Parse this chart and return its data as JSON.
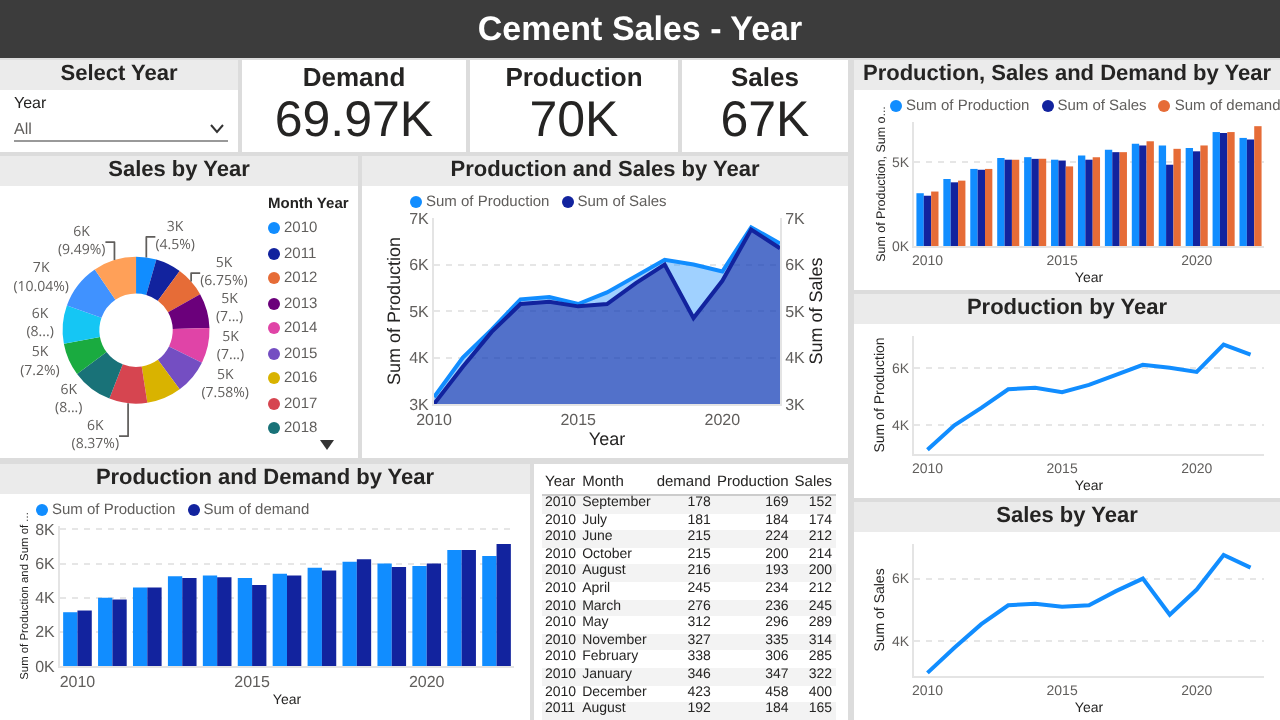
{
  "chart_data": [
    {
      "type": "other",
      "title": "Cement Sales - Year"
    },
    {
      "type": "other",
      "title": "Select Year",
      "annotations": [
        "Year",
        "All"
      ]
    },
    {
      "type": "other",
      "title": "Demand",
      "annotations": [
        "69.97K"
      ]
    },
    {
      "type": "other",
      "title": "Production",
      "annotations": [
        "70K"
      ]
    },
    {
      "type": "other",
      "title": "Sales",
      "annotations": [
        "67K"
      ]
    },
    {
      "type": "bar",
      "title": "Production, Sales and Demand by Year",
      "xlabel": "Year",
      "ylabel": "Sum of Production, Sum o...",
      "x": [
        2010,
        2011,
        2012,
        2013,
        2014,
        2015,
        2016,
        2017,
        2018,
        2019,
        2020,
        2021,
        2022
      ],
      "xlim": [
        2009.5,
        2022.5
      ],
      "xticks": [
        2010,
        2015,
        2020
      ],
      "ylim": [
        0,
        7400
      ],
      "yticks": [
        {
          "value": 0,
          "label": "0K"
        },
        {
          "value": 5000,
          "label": "5K"
        }
      ],
      "grid": "y",
      "legend": "top left",
      "series": [
        {
          "name": "Sum of Production",
          "color": "#118dff",
          "values": [
            3150,
            4000,
            4600,
            5250,
            5300,
            5150,
            5400,
            5750,
            6100,
            6000,
            5850,
            6800,
            6450
          ]
        },
        {
          "name": "Sum of Sales",
          "color": "#12239e",
          "values": [
            3000,
            3800,
            4550,
            5150,
            5200,
            5100,
            5150,
            5600,
            6000,
            4850,
            5650,
            6750,
            6350
          ]
        },
        {
          "name": "Sum of demand",
          "color": "#e66c37",
          "values": [
            3250,
            3900,
            4600,
            5150,
            5200,
            4750,
            5300,
            5600,
            6250,
            5800,
            6000,
            6800,
            7150
          ]
        }
      ]
    },
    {
      "type": "donut",
      "title": "Sales by Year",
      "legend_title": "Month Year",
      "legend": "right",
      "categories": [
        "2010",
        "2011",
        "2012",
        "2013",
        "2014",
        "2015",
        "2016",
        "2017",
        "2018",
        null,
        null,
        null,
        null
      ],
      "values": [
        3000,
        3800,
        4530,
        5150,
        5200,
        5090,
        5150,
        5620,
        6000,
        4835,
        5650,
        6740,
        6375
      ],
      "value_labels": [
        "3K (4.5%)",
        null,
        "5K (6.75%)",
        "5K (7...)",
        "5K (7...)",
        "5K (7.58%)",
        null,
        "6K (8.37%)",
        "6K (8...)",
        "5K (7.2%)",
        "6K (8...)",
        "7K (10.04%)",
        "6K (9.49%)"
      ],
      "colors": [
        "#118dff",
        "#12239e",
        "#e66c37",
        "#6b007b",
        "#e044a7",
        "#744ec2",
        "#d9b300",
        "#d64550",
        "#197278",
        "#1aab40",
        "#15c6f4",
        "#4092ff",
        "#ffa058"
      ]
    },
    {
      "type": "area",
      "title": "Production and Sales by Year",
      "xlabel": "Year",
      "ylabel": "Sum of Production",
      "y2label": "Sum of Sales",
      "x": [
        2010,
        2011,
        2012,
        2013,
        2014,
        2015,
        2016,
        2017,
        2018,
        2019,
        2020,
        2021,
        2022
      ],
      "xlim": [
        2010,
        2022
      ],
      "xticks": [
        2010,
        2015,
        2020
      ],
      "ylim": [
        3000,
        7000
      ],
      "yticks": [
        {
          "value": 3000,
          "label": "3K"
        },
        {
          "value": 4000,
          "label": "4K"
        },
        {
          "value": 5000,
          "label": "5K"
        },
        {
          "value": 6000,
          "label": "6K"
        },
        {
          "value": 7000,
          "label": "7K"
        }
      ],
      "y2lim": [
        3000,
        7000
      ],
      "y2ticks": [
        {
          "value": 3000,
          "label": "3K"
        },
        {
          "value": 4000,
          "label": "4K"
        },
        {
          "value": 5000,
          "label": "5K"
        },
        {
          "value": 6000,
          "label": "6K"
        },
        {
          "value": 7000,
          "label": "7K"
        }
      ],
      "grid": "y",
      "legend": "top left",
      "series": [
        {
          "name": "Sum of Production",
          "color": "#118dff",
          "values": [
            3150,
            4000,
            4600,
            5250,
            5300,
            5150,
            5400,
            5750,
            6100,
            6000,
            5850,
            6800,
            6450
          ]
        },
        {
          "name": "Sum of Sales",
          "color": "#12239e",
          "values": [
            3000,
            3800,
            4550,
            5150,
            5200,
            5100,
            5150,
            5600,
            6000,
            4850,
            5650,
            6750,
            6350
          ]
        }
      ]
    },
    {
      "type": "line",
      "title": "Production by Year",
      "xlabel": "Year",
      "ylabel": "Sum of Production",
      "x": [
        2010,
        2011,
        2012,
        2013,
        2014,
        2015,
        2016,
        2017,
        2018,
        2019,
        2020,
        2021,
        2022
      ],
      "xlim": [
        2009.5,
        2022.5
      ],
      "xticks": [
        2010,
        2015,
        2020
      ],
      "ylim": [
        3000,
        7100
      ],
      "yticks": [
        {
          "value": 4000,
          "label": "4K"
        },
        {
          "value": 6000,
          "label": "6K"
        }
      ],
      "grid": "y",
      "series": [
        {
          "color": "#118dff",
          "values": [
            3150,
            4000,
            4600,
            5250,
            5300,
            5150,
            5400,
            5750,
            6100,
            6000,
            5850,
            6800,
            6450
          ]
        }
      ]
    },
    {
      "type": "bar",
      "title": "Production and Demand by Year",
      "xlabel": "Year",
      "ylabel": "Sum of Production and Sum of ...",
      "x": [
        2010,
        2011,
        2012,
        2013,
        2014,
        2015,
        2016,
        2017,
        2018,
        2019,
        2020,
        2021,
        2022
      ],
      "xlim": [
        2009.5,
        2022.5
      ],
      "xticks": [
        2010,
        2015,
        2020
      ],
      "ylim": [
        0,
        8200
      ],
      "yticks": [
        {
          "value": 0,
          "label": "0K"
        },
        {
          "value": 2000,
          "label": "2K"
        },
        {
          "value": 4000,
          "label": "4K"
        },
        {
          "value": 6000,
          "label": "6K"
        },
        {
          "value": 8000,
          "label": "8K"
        }
      ],
      "grid": "y",
      "legend": "top left",
      "series": [
        {
          "name": "Sum of Production",
          "color": "#118dff",
          "values": [
            3150,
            4000,
            4600,
            5250,
            5300,
            5150,
            5400,
            5750,
            6100,
            6000,
            5850,
            6800,
            6450
          ]
        },
        {
          "name": "Sum of demand",
          "color": "#12239e",
          "values": [
            3250,
            3900,
            4600,
            5150,
            5200,
            4750,
            5300,
            5600,
            6250,
            5800,
            6000,
            6800,
            7150
          ]
        }
      ]
    },
    {
      "type": "other",
      "categories": [
        "Year",
        "Month",
        "demand",
        "Production",
        "Sales"
      ],
      "cell_labels": [
        [
          "2010",
          "September",
          "178",
          "169",
          "152"
        ],
        [
          "2010",
          "July",
          "181",
          "184",
          "174"
        ],
        [
          "2010",
          "June",
          "215",
          "224",
          "212"
        ],
        [
          "2010",
          "October",
          "215",
          "200",
          "214"
        ],
        [
          "2010",
          "August",
          "216",
          "193",
          "200"
        ],
        [
          "2010",
          "April",
          "245",
          "234",
          "212"
        ],
        [
          "2010",
          "March",
          "276",
          "236",
          "245"
        ],
        [
          "2010",
          "May",
          "312",
          "296",
          "289"
        ],
        [
          "2010",
          "November",
          "327",
          "335",
          "314"
        ],
        [
          "2010",
          "February",
          "338",
          "306",
          "285"
        ],
        [
          "2010",
          "January",
          "346",
          "347",
          "322"
        ],
        [
          "2010",
          "December",
          "423",
          "458",
          "400"
        ],
        [
          "2011",
          "August",
          "192",
          "184",
          "165"
        ]
      ]
    },
    {
      "type": "line",
      "title": "Sales by Year",
      "xlabel": "Year",
      "ylabel": "Sum of Sales",
      "x": [
        2010,
        2011,
        2012,
        2013,
        2014,
        2015,
        2016,
        2017,
        2018,
        2019,
        2020,
        2021,
        2022
      ],
      "xlim": [
        2009.5,
        2022.5
      ],
      "xticks": [
        2010,
        2015,
        2020
      ],
      "ylim": [
        2900,
        7100
      ],
      "yticks": [
        {
          "value": 4000,
          "label": "4K"
        },
        {
          "value": 6000,
          "label": "6K"
        }
      ],
      "grid": "y",
      "series": [
        {
          "color": "#118dff",
          "values": [
            3000,
            3800,
            4550,
            5150,
            5200,
            5100,
            5150,
            5600,
            6000,
            4850,
            5650,
            6750,
            6350
          ]
        }
      ]
    }
  ]
}
